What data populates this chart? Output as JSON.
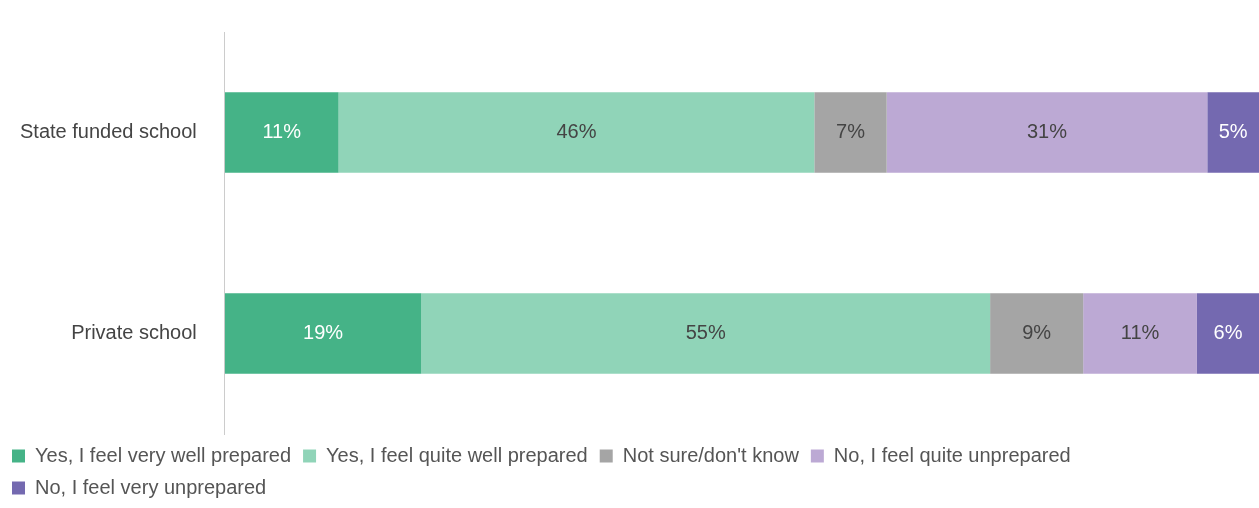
{
  "chart_data": {
    "type": "bar",
    "orientation": "horizontal",
    "stacked": true,
    "categories": [
      "State funded school",
      "Private school"
    ],
    "series": [
      {
        "name": "Yes, I feel very well prepared",
        "color": "#45b387",
        "values": [
          11,
          19
        ],
        "value_labels": [
          "11%",
          "19%"
        ]
      },
      {
        "name": "Yes, I feel quite well prepared",
        "color": "#90d4b8",
        "values": [
          46,
          55
        ],
        "value_labels": [
          "46%",
          "55%"
        ]
      },
      {
        "name": "Not sure/don't know",
        "color": "#a5a5a5",
        "values": [
          7,
          9
        ],
        "value_labels": [
          "7%",
          "9%"
        ]
      },
      {
        "name": "No, I feel quite unprepared",
        "color": "#bca9d4",
        "values": [
          31,
          11
        ],
        "value_labels": [
          "31%",
          "11%"
        ]
      },
      {
        "name": "No, I feel very unprepared",
        "color": "#7469b0",
        "values": [
          5,
          6
        ],
        "value_labels": [
          "5%",
          "6%"
        ]
      }
    ],
    "tick_labels": "y",
    "legend": "bottom"
  }
}
